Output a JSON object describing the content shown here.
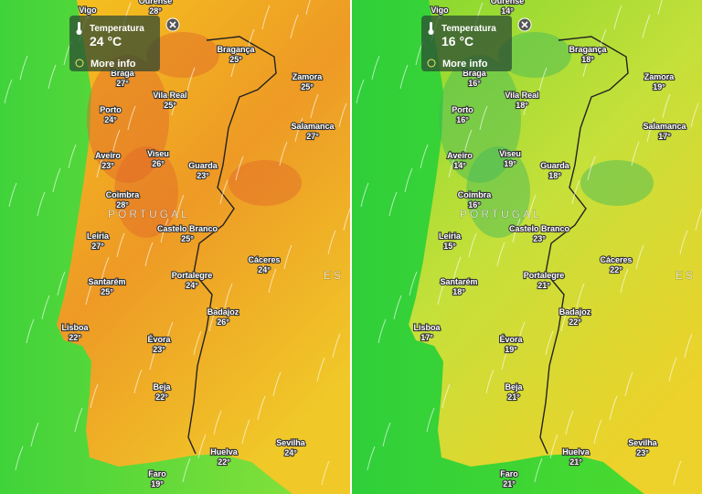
{
  "panels": [
    {
      "popup": {
        "title": "Temperatura",
        "value": "24 °C",
        "link": "More info"
      },
      "country_labels": [
        "PORTUGAL",
        "ES"
      ],
      "cities": [
        {
          "name": "Vigo"
        },
        {
          "name": "Ourense",
          "temp": "28°"
        },
        {
          "name": "Bragança",
          "temp": "25°"
        },
        {
          "name": "Braga",
          "temp": "27°"
        },
        {
          "name": "Zamora",
          "temp": "25°"
        },
        {
          "name": "Vila Real",
          "temp": "25°"
        },
        {
          "name": "Porto",
          "temp": "24°"
        },
        {
          "name": "Salamanca",
          "temp": "27°"
        },
        {
          "name": "Aveiro",
          "temp": "23°"
        },
        {
          "name": "Viseu",
          "temp": "26°"
        },
        {
          "name": "Guarda",
          "temp": "23°"
        },
        {
          "name": "Coimbra",
          "temp": "28°"
        },
        {
          "name": "Leiria",
          "temp": "27°"
        },
        {
          "name": "Castelo Branco",
          "temp": "25°"
        },
        {
          "name": "Cáceres",
          "temp": "24°"
        },
        {
          "name": "Portalegre",
          "temp": "24°"
        },
        {
          "name": "Santarém",
          "temp": "25°"
        },
        {
          "name": "Badajoz",
          "temp": "26°"
        },
        {
          "name": "Lisboa",
          "temp": "22°"
        },
        {
          "name": "Évora",
          "temp": "23°"
        },
        {
          "name": "Beja",
          "temp": "22°"
        },
        {
          "name": "Sevilha",
          "temp": "24°"
        },
        {
          "name": "Huelva",
          "temp": "22°"
        },
        {
          "name": "Faro",
          "temp": "19°"
        }
      ]
    },
    {
      "popup": {
        "title": "Temperatura",
        "value": "16 °C",
        "link": "More info"
      },
      "country_labels": [
        "PORTUGAL",
        "ES"
      ],
      "cities": [
        {
          "name": "Vigo"
        },
        {
          "name": "Ourense",
          "temp": "14°"
        },
        {
          "name": "Bragança",
          "temp": "18°"
        },
        {
          "name": "Braga",
          "temp": "16°"
        },
        {
          "name": "Zamora",
          "temp": "19°"
        },
        {
          "name": "Vila Real",
          "temp": "18°"
        },
        {
          "name": "Porto",
          "temp": "16°"
        },
        {
          "name": "Salamanca",
          "temp": "17°"
        },
        {
          "name": "Aveiro",
          "temp": "14°"
        },
        {
          "name": "Viseu",
          "temp": "19°"
        },
        {
          "name": "Guarda",
          "temp": "18°"
        },
        {
          "name": "Coimbra",
          "temp": "16°"
        },
        {
          "name": "Leiria",
          "temp": "15°"
        },
        {
          "name": "Castelo Branco",
          "temp": "23°"
        },
        {
          "name": "Cáceres",
          "temp": "22°"
        },
        {
          "name": "Portalegre",
          "temp": "21°"
        },
        {
          "name": "Santarém",
          "temp": "18°"
        },
        {
          "name": "Badajoz",
          "temp": "22°"
        },
        {
          "name": "Lisboa",
          "temp": "17°"
        },
        {
          "name": "Évora",
          "temp": "19°"
        },
        {
          "name": "Beja",
          "temp": "21°"
        },
        {
          "name": "Sevilha",
          "temp": "23°"
        },
        {
          "name": "Huelva",
          "temp": "21°"
        },
        {
          "name": "Faro",
          "temp": "21°"
        }
      ]
    }
  ]
}
